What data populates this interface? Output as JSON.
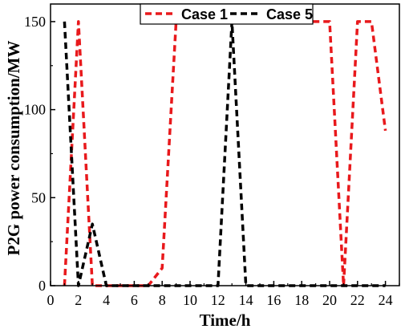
{
  "chart_data": {
    "type": "line",
    "xlabel": "Time/h",
    "ylabel": "P2G power consumption/MW",
    "xlim": [
      0,
      25
    ],
    "ylim": [
      0,
      160
    ],
    "xticks": [
      0,
      2,
      4,
      6,
      8,
      10,
      12,
      14,
      16,
      18,
      20,
      22,
      24
    ],
    "yticks": [
      0,
      50,
      100,
      150
    ],
    "grid": false,
    "legend_position": "top",
    "series": [
      {
        "name": "Case 1",
        "color": "#e8191c",
        "x": [
          1,
          2,
          3,
          4,
          5,
          6,
          7,
          8,
          9,
          10,
          11,
          12,
          13,
          14,
          15,
          16,
          17,
          18,
          19,
          20,
          21,
          22,
          23,
          24
        ],
        "values": [
          0,
          150,
          0,
          0,
          0,
          0,
          0,
          10,
          150,
          150,
          150,
          150,
          150,
          150,
          150,
          150,
          150,
          150,
          150,
          150,
          0,
          150,
          150,
          88
        ]
      },
      {
        "name": "Case 5",
        "color": "#000000",
        "x": [
          1,
          2,
          3,
          4,
          5,
          6,
          7,
          8,
          9,
          10,
          11,
          12,
          13,
          14,
          15,
          16,
          17,
          18,
          19,
          20,
          21,
          22,
          23,
          24
        ],
        "values": [
          150,
          0,
          35,
          0,
          0,
          0,
          0,
          0,
          0,
          0,
          0,
          0,
          150,
          0,
          0,
          0,
          0,
          0,
          0,
          0,
          0,
          0,
          0,
          0
        ]
      }
    ]
  }
}
